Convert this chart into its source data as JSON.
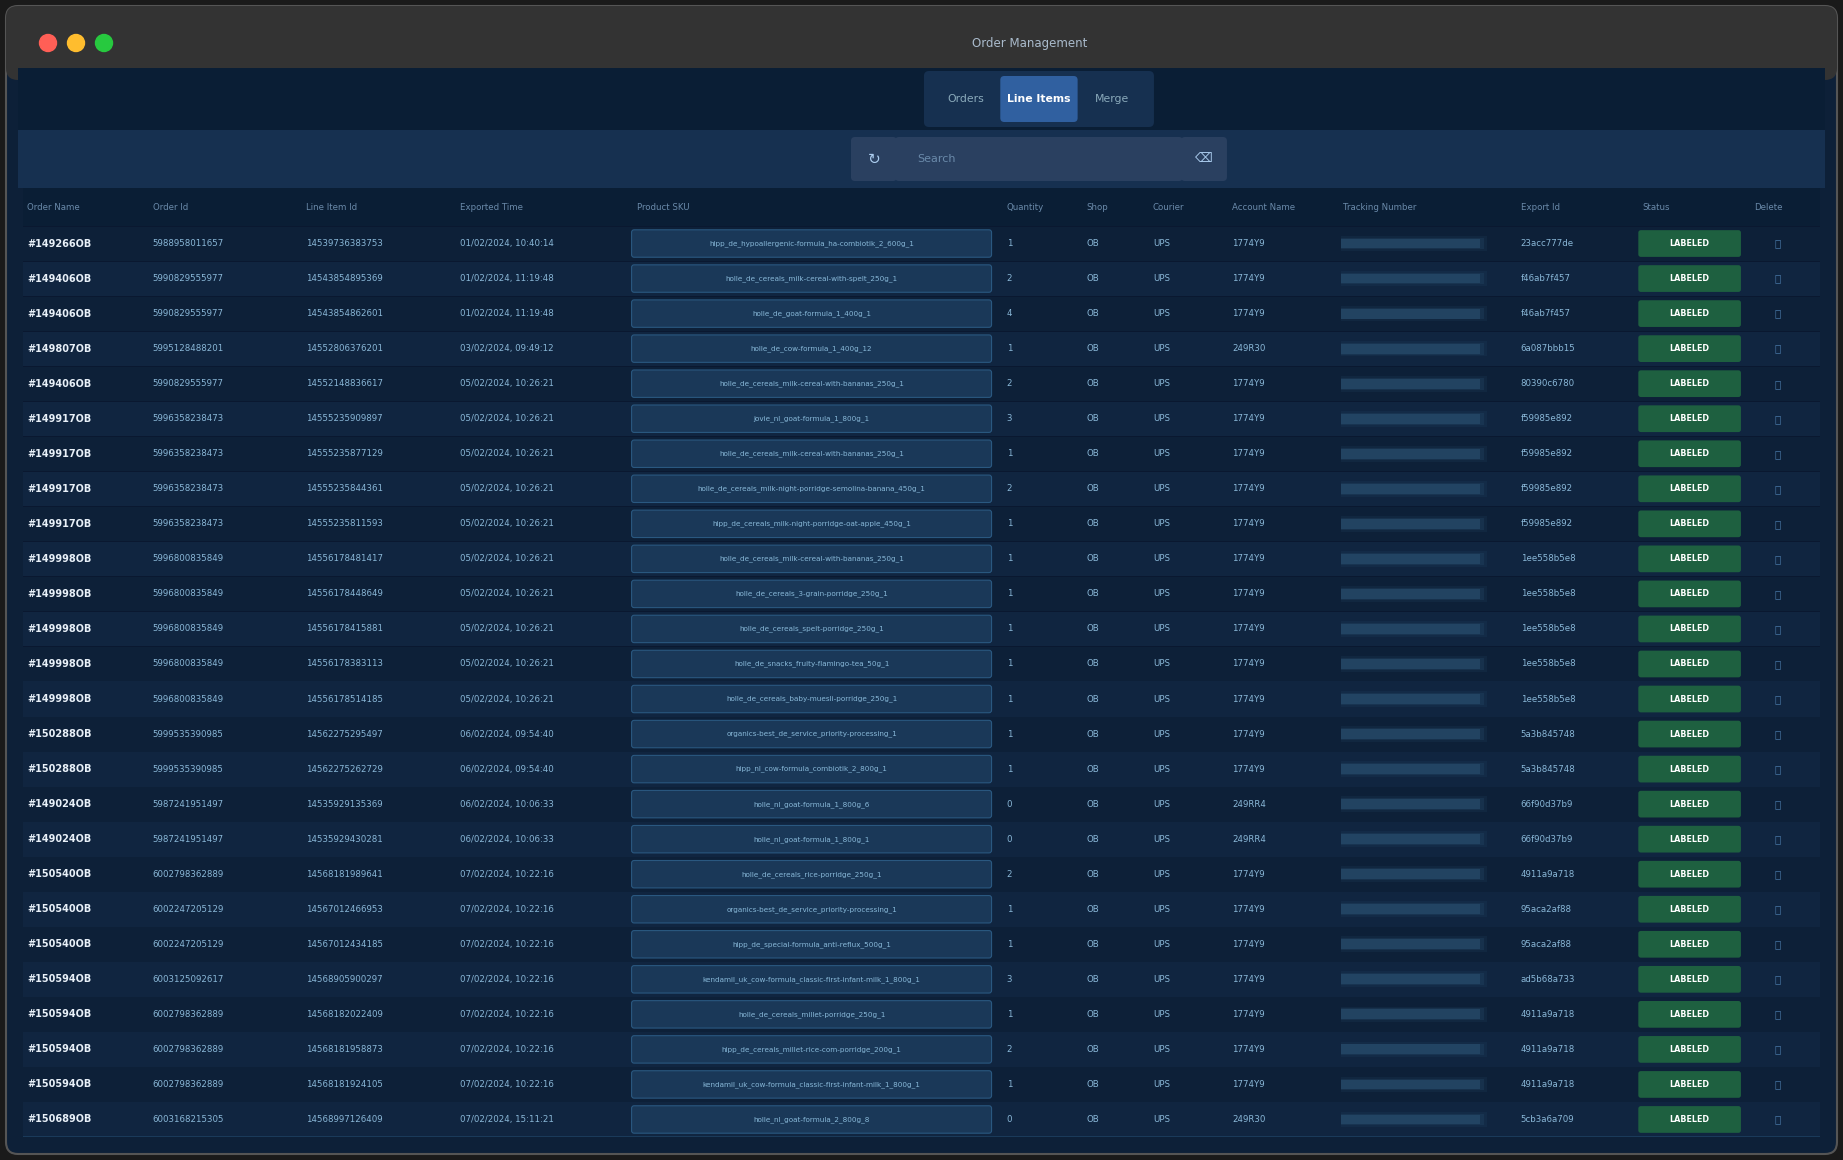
{
  "title": "Order Management",
  "tabs": [
    "Orders",
    "Line Items",
    "Merge"
  ],
  "active_tab": "Line Items",
  "columns": [
    "Order Name",
    "Order Id",
    "Line Item Id",
    "Exported Time",
    "Product SKU",
    "Quantity",
    "Shop",
    "Courier",
    "Account Name",
    "Tracking Number",
    "Export Id",
    "Status",
    "Delete"
  ],
  "rows": [
    [
      "#149266OB",
      "5988958011657",
      "14539736383753",
      "01/02/2024, 10:40:14",
      "hipp_de_hypoallergenic-formula_ha-combiotik_2_600g_1",
      "1",
      "OB",
      "UPS",
      "1774Y9",
      "",
      "23acc777de",
      "LABELED",
      ""
    ],
    [
      "#149406OB",
      "5990829555977",
      "14543854895369",
      "01/02/2024, 11:19:48",
      "holle_de_cereals_milk-cereal-with-spelt_250g_1",
      "2",
      "OB",
      "UPS",
      "1774Y9",
      "",
      "f46ab7f457",
      "LABELED",
      ""
    ],
    [
      "#149406OB",
      "5990829555977",
      "14543854862601",
      "01/02/2024, 11:19:48",
      "holle_de_goat-formula_1_400g_1",
      "4",
      "OB",
      "UPS",
      "1774Y9",
      "",
      "f46ab7f457",
      "LABELED",
      ""
    ],
    [
      "#149807OB",
      "5995128488201",
      "14552806376201",
      "03/02/2024, 09:49:12",
      "holle_de_cow-formula_1_400g_12",
      "1",
      "OB",
      "UPS",
      "249R30",
      "",
      "6a087bbb15",
      "LABELED",
      ""
    ],
    [
      "#149406OB",
      "5990829555977",
      "14552148836617",
      "05/02/2024, 10:26:21",
      "holle_de_cereals_milk-cereal-with-bananas_250g_1",
      "2",
      "OB",
      "UPS",
      "1774Y9",
      "",
      "80390c6780",
      "LABELED",
      ""
    ],
    [
      "#149917OB",
      "5996358238473",
      "14555235909897",
      "05/02/2024, 10:26:21",
      "jovie_nl_goat-formula_1_800g_1",
      "3",
      "OB",
      "UPS",
      "1774Y9",
      "",
      "f59985e892",
      "LABELED",
      ""
    ],
    [
      "#149917OB",
      "5996358238473",
      "14555235877129",
      "05/02/2024, 10:26:21",
      "holle_de_cereals_milk-cereal-with-bananas_250g_1",
      "1",
      "OB",
      "UPS",
      "1774Y9",
      "",
      "f59985e892",
      "LABELED",
      ""
    ],
    [
      "#149917OB",
      "5996358238473",
      "14555235844361",
      "05/02/2024, 10:26:21",
      "holle_de_cereals_milk-night-porridge-semolina-banana_450g_1",
      "2",
      "OB",
      "UPS",
      "1774Y9",
      "",
      "f59985e892",
      "LABELED",
      ""
    ],
    [
      "#149917OB",
      "5996358238473",
      "14555235811593",
      "05/02/2024, 10:26:21",
      "hipp_de_cereals_milk-night-porridge-oat-apple_450g_1",
      "1",
      "OB",
      "UPS",
      "1774Y9",
      "",
      "f59985e892",
      "LABELED",
      ""
    ],
    [
      "#149998OB",
      "5996800835849",
      "14556178481417",
      "05/02/2024, 10:26:21",
      "holle_de_cereals_milk-cereal-with-bananas_250g_1",
      "1",
      "OB",
      "UPS",
      "1774Y9",
      "",
      "1ee558b5e8",
      "LABELED",
      ""
    ],
    [
      "#149998OB",
      "5996800835849",
      "14556178448649",
      "05/02/2024, 10:26:21",
      "holle_de_cereals_3-grain-porridge_250g_1",
      "1",
      "OB",
      "UPS",
      "1774Y9",
      "",
      "1ee558b5e8",
      "LABELED",
      ""
    ],
    [
      "#149998OB",
      "5996800835849",
      "14556178415881",
      "05/02/2024, 10:26:21",
      "holle_de_cereals_spelt-porridge_250g_1",
      "1",
      "OB",
      "UPS",
      "1774Y9",
      "",
      "1ee558b5e8",
      "LABELED",
      ""
    ],
    [
      "#149998OB",
      "5996800835849",
      "14556178383113",
      "05/02/2024, 10:26:21",
      "holle_de_snacks_fruity-flamingo-tea_50g_1",
      "1",
      "OB",
      "UPS",
      "1774Y9",
      "",
      "1ee558b5e8",
      "LABELED",
      ""
    ],
    [
      "#149998OB",
      "5996800835849",
      "14556178514185",
      "05/02/2024, 10:26:21",
      "holle_de_cereals_baby-muesli-porridge_250g_1",
      "1",
      "OB",
      "UPS",
      "1774Y9",
      "",
      "1ee558b5e8",
      "LABELED",
      ""
    ],
    [
      "#150288OB",
      "5999535390985",
      "14562275295497",
      "06/02/2024, 09:54:40",
      "organics-best_de_service_priority-processing_1",
      "1",
      "OB",
      "UPS",
      "1774Y9",
      "",
      "5a3b845748",
      "LABELED",
      ""
    ],
    [
      "#150288OB",
      "5999535390985",
      "14562275262729",
      "06/02/2024, 09:54:40",
      "hipp_nl_cow-formula_combiotik_2_800g_1",
      "1",
      "OB",
      "UPS",
      "1774Y9",
      "",
      "5a3b845748",
      "LABELED",
      ""
    ],
    [
      "#149024OB",
      "5987241951497",
      "14535929135369",
      "06/02/2024, 10:06:33",
      "holle_nl_goat-formula_1_800g_6",
      "0",
      "OB",
      "UPS",
      "249RR4",
      "",
      "66f90d37b9",
      "LABELED",
      ""
    ],
    [
      "#149024OB",
      "5987241951497",
      "14535929430281",
      "06/02/2024, 10:06:33",
      "holle_nl_goat-formula_1_800g_1",
      "0",
      "OB",
      "UPS",
      "249RR4",
      "",
      "66f90d37b9",
      "LABELED",
      ""
    ],
    [
      "#150540OB",
      "6002798362889",
      "14568181989641",
      "07/02/2024, 10:22:16",
      "holle_de_cereals_rice-porridge_250g_1",
      "2",
      "OB",
      "UPS",
      "1774Y9",
      "",
      "4911a9a718",
      "LABELED",
      ""
    ],
    [
      "#150540OB",
      "6002247205129",
      "14567012466953",
      "07/02/2024, 10:22:16",
      "organics-best_de_service_priority-processing_1",
      "1",
      "OB",
      "UPS",
      "1774Y9",
      "",
      "95aca2af88",
      "LABELED",
      ""
    ],
    [
      "#150540OB",
      "6002247205129",
      "14567012434185",
      "07/02/2024, 10:22:16",
      "hipp_de_special-formula_anti-reflux_500g_1",
      "1",
      "OB",
      "UPS",
      "1774Y9",
      "",
      "95aca2af88",
      "LABELED",
      ""
    ],
    [
      "#150594OB",
      "6003125092617",
      "14568905900297",
      "07/02/2024, 10:22:16",
      "kendamil_uk_cow-formula_classic-first-infant-milk_1_800g_1",
      "3",
      "OB",
      "UPS",
      "1774Y9",
      "",
      "ad5b68a733",
      "LABELED",
      ""
    ],
    [
      "#150594OB",
      "6002798362889",
      "14568182022409",
      "07/02/2024, 10:22:16",
      "holle_de_cereals_millet-porridge_250g_1",
      "1",
      "OB",
      "UPS",
      "1774Y9",
      "",
      "4911a9a718",
      "LABELED",
      ""
    ],
    [
      "#150594OB",
      "6002798362889",
      "14568181958873",
      "07/02/2024, 10:22:16",
      "hipp_de_cereals_millet-rice-com-porridge_200g_1",
      "2",
      "OB",
      "UPS",
      "1774Y9",
      "",
      "4911a9a718",
      "LABELED",
      ""
    ],
    [
      "#150594OB",
      "6002798362889",
      "14568181924105",
      "07/02/2024, 10:22:16",
      "kendamil_uk_cow-formula_classic-first-infant-milk_1_800g_1",
      "1",
      "OB",
      "UPS",
      "1774Y9",
      "",
      "4911a9a718",
      "LABELED",
      ""
    ],
    [
      "#150689OB",
      "6003168215305",
      "14568997126409",
      "07/02/2024, 15:11:21",
      "holle_nl_goat-formula_2_800g_8",
      "0",
      "OB",
      "UPS",
      "249R30",
      "",
      "5cb3a6a709",
      "LABELED",
      ""
    ]
  ],
  "outer_bg": "#1a1a1a",
  "window_border": "#3a3a3a",
  "titlebar_bg": "#333333",
  "title_color": "#aabbcc",
  "dot_colors": [
    "#ff5f56",
    "#ffbd2e",
    "#27c93f"
  ],
  "content_bg": "#0d2038",
  "tab_section_bg": "#0a1e35",
  "tab_group_bg": "#163050",
  "tab_active_bg": "#3060a0",
  "tab_inactive_text": "#8aaabb",
  "tab_text_active": "#ffffff",
  "toolbar_bg": "#163050",
  "search_bg": "#2a4060",
  "search_text": "#6a8aaa",
  "btn_bg": "#2a4060",
  "col_header_bg": "#0a1e35",
  "col_header_text": "#6a8aaa",
  "row_bg_dark": "#0d2038",
  "row_bg_light": "#102540",
  "cell_text": "#8ab8d8",
  "order_name_color": "#e8f0f8",
  "sku_bg": "#1a3858",
  "sku_border": "#2a5880",
  "sku_text": "#88b8d8",
  "tracking_bar": "#2a5070",
  "labeled_bg": "#1e6040",
  "labeled_text": "#ffffff",
  "delete_color": "#4a7aaa",
  "divider_color": "#0a1830"
}
